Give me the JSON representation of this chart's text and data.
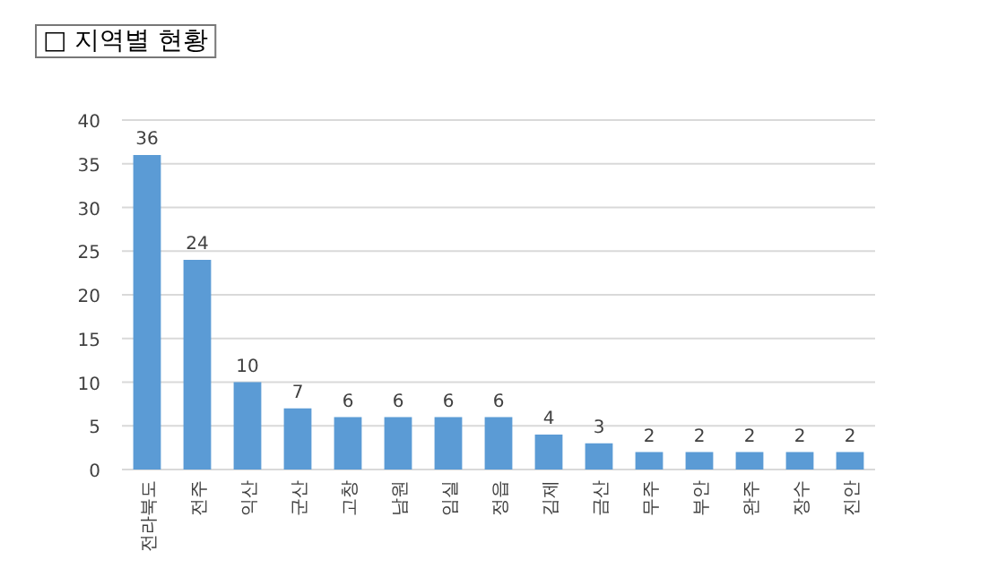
{
  "chart_data": {
    "type": "bar",
    "title": "□ 지역별 현황",
    "categories": [
      "전라북도",
      "전주",
      "익산",
      "군산",
      "고창",
      "남원",
      "임실",
      "정읍",
      "김제",
      "금산",
      "무주",
      "부안",
      "완주",
      "장수",
      "진안"
    ],
    "values": [
      36,
      24,
      10,
      7,
      6,
      6,
      6,
      6,
      4,
      3,
      2,
      2,
      2,
      2,
      2
    ],
    "color": "#5b9bd5",
    "ylim": [
      0,
      40
    ],
    "yticks": [
      0,
      5,
      10,
      15,
      20,
      25,
      30,
      35,
      40
    ],
    "grid": "y",
    "data_labels": true
  }
}
